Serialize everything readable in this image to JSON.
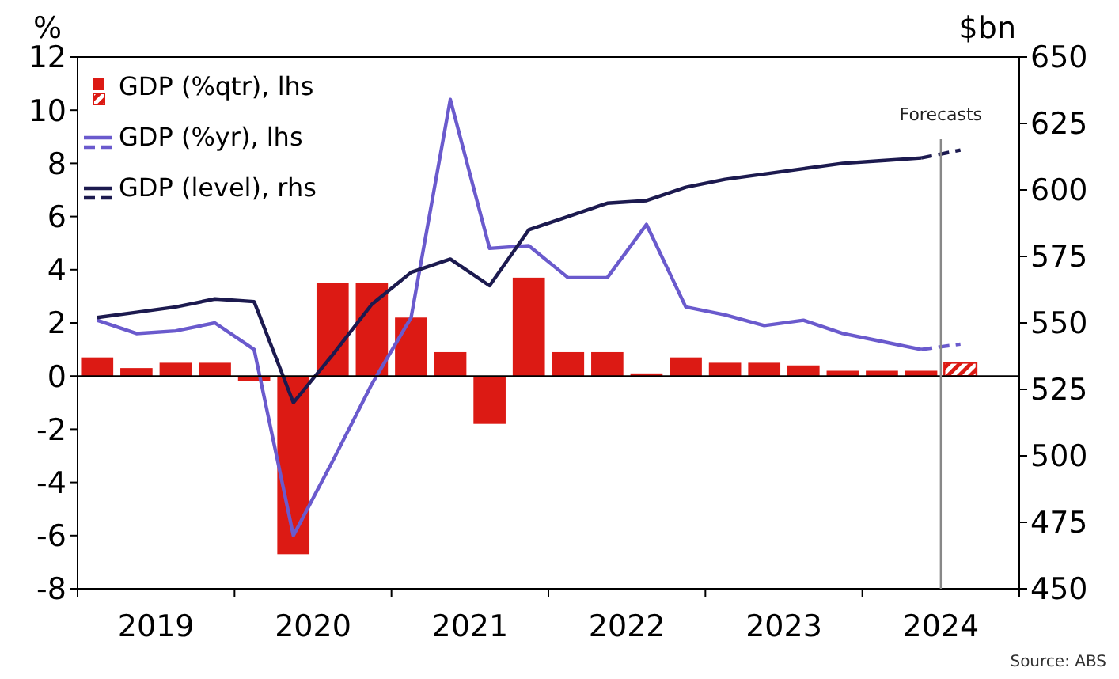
{
  "chart_data": {
    "type": "bar",
    "ylabel": "%",
    "y2label": "$bn",
    "x": [
      2019.125,
      2019.375,
      2019.625,
      2019.875,
      2020.125,
      2020.375,
      2020.625,
      2020.875,
      2021.125,
      2021.375,
      2021.625,
      2021.875,
      2022.125,
      2022.375,
      2022.625,
      2022.875,
      2023.125,
      2023.375,
      2023.625,
      2023.875,
      2024.125,
      2024.375,
      2024.625
    ],
    "xlim": [
      2019,
      2025
    ],
    "xticks": [
      {
        "value": 2019,
        "label": null
      },
      {
        "value": 2019.5,
        "label": "2019"
      },
      {
        "value": 2020,
        "label": null
      },
      {
        "value": 2020.5,
        "label": "2020"
      },
      {
        "value": 2021,
        "label": null
      },
      {
        "value": 2021.5,
        "label": "2021"
      },
      {
        "value": 2022,
        "label": null
      },
      {
        "value": 2022.5,
        "label": "2022"
      },
      {
        "value": 2023,
        "label": null
      },
      {
        "value": 2023.5,
        "label": "2023"
      },
      {
        "value": 2024,
        "label": null
      },
      {
        "value": 2024.5,
        "label": "2024"
      },
      {
        "value": 2025,
        "label": null
      }
    ],
    "ylim": [
      -8,
      12
    ],
    "yticks": [
      -8,
      -6,
      -4,
      -2,
      0,
      2,
      4,
      6,
      8,
      10,
      12
    ],
    "y2lim": [
      450,
      650
    ],
    "y2ticks": [
      450,
      475,
      500,
      525,
      550,
      575,
      600,
      625,
      650
    ],
    "series": [
      {
        "name": "GDP (%qtr), lhs",
        "color": "#dc1a14",
        "values": [
          0.7,
          0.3,
          0.5,
          0.5,
          -0.2,
          -6.7,
          3.5,
          3.5,
          2.2,
          0.9,
          -1.8,
          3.7,
          0.9,
          0.9,
          0.1,
          0.7,
          0.5,
          0.5,
          0.4,
          0.2,
          0.2,
          0.2,
          null
        ]
      },
      {
        "color": "#dc1a14",
        "line_style": "dashed",
        "values": [
          null,
          null,
          null,
          null,
          null,
          null,
          null,
          null,
          null,
          null,
          null,
          null,
          null,
          null,
          null,
          null,
          null,
          null,
          null,
          null,
          null,
          null,
          0.5
        ]
      },
      {
        "name": "GDP (%yr), lhs",
        "type": "line",
        "color": "#6a5acd",
        "values": [
          2.1,
          1.6,
          1.7,
          2.0,
          1.0,
          -6.0,
          -3.2,
          -0.3,
          2.2,
          10.4,
          4.8,
          4.9,
          3.7,
          3.7,
          5.7,
          2.6,
          2.3,
          1.9,
          2.1,
          1.6,
          1.3,
          1.0,
          null
        ]
      },
      {
        "type": "line",
        "color": "#6a5acd",
        "line_style": "dashed",
        "values": [
          null,
          null,
          null,
          null,
          null,
          null,
          null,
          null,
          null,
          null,
          null,
          null,
          null,
          null,
          null,
          null,
          null,
          null,
          null,
          null,
          null,
          1.0,
          1.2
        ]
      },
      {
        "name": "GDP (level), rhs",
        "type": "line",
        "axis": "y2",
        "color": "#1c1a4f",
        "values": [
          552,
          554,
          556,
          559,
          558,
          520,
          538,
          557,
          569,
          574,
          564,
          585,
          590,
          595,
          596,
          601,
          604,
          606,
          608,
          610,
          611,
          612,
          null
        ]
      },
      {
        "type": "line",
        "axis": "y2",
        "color": "#1c1a4f",
        "line_style": "dashed",
        "values": [
          null,
          null,
          null,
          null,
          null,
          null,
          null,
          null,
          null,
          null,
          null,
          null,
          null,
          null,
          null,
          null,
          null,
          null,
          null,
          null,
          null,
          612,
          615
        ]
      }
    ],
    "ref_lines": [
      {
        "axis": "x",
        "value": 2024.5,
        "label": "Forecasts",
        "color": "#888888"
      }
    ],
    "legend": "top left",
    "annotations": [
      "Source: ABS"
    ]
  }
}
